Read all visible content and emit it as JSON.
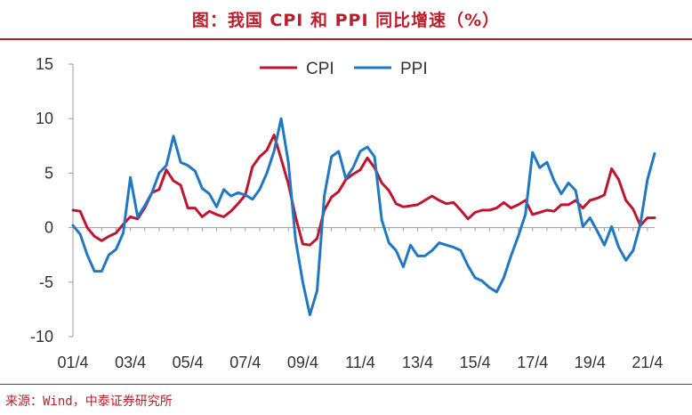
{
  "title": "图：我国 CPI 和 PPI 同比增速（%）",
  "source": "来源：Wind，中泰证券研究所",
  "colors": {
    "cpi": "#c0152f",
    "ppi": "#1f78c1",
    "accent": "#b8202b"
  },
  "chart_data": {
    "type": "line",
    "title": "我国 CPI 和 PPI 同比增速（%）",
    "xlabel": "",
    "ylabel": "",
    "ylim": [
      -10,
      15
    ],
    "yticks": [
      -10,
      -5,
      0,
      5,
      10,
      15
    ],
    "ytick_labels": [
      "-10",
      "-5",
      "0",
      "5",
      "10",
      "15"
    ],
    "x_start": 2001.25,
    "x_end": 2021.5,
    "xtick_labels": [
      "01/4",
      "03/4",
      "05/4",
      "07/4",
      "09/4",
      "11/4",
      "13/4",
      "15/4",
      "17/4",
      "19/4",
      "21/4"
    ],
    "xtick_positions": [
      2001.25,
      2003.25,
      2005.25,
      2007.25,
      2009.25,
      2011.25,
      2013.25,
      2015.25,
      2017.25,
      2019.25,
      2021.25
    ],
    "legend_position": "top",
    "series": [
      {
        "name": "CPI",
        "color": "#c0152f",
        "x": [
          2001.25,
          2001.5,
          2001.75,
          2002.0,
          2002.25,
          2002.5,
          2002.75,
          2003.0,
          2003.25,
          2003.5,
          2003.75,
          2004.0,
          2004.25,
          2004.5,
          2004.75,
          2005.0,
          2005.25,
          2005.5,
          2005.75,
          2006.0,
          2006.25,
          2006.5,
          2006.75,
          2007.0,
          2007.25,
          2007.5,
          2007.75,
          2008.0,
          2008.25,
          2008.5,
          2008.75,
          2009.0,
          2009.25,
          2009.5,
          2009.75,
          2010.0,
          2010.25,
          2010.5,
          2010.75,
          2011.0,
          2011.25,
          2011.5,
          2011.75,
          2012.0,
          2012.25,
          2012.5,
          2012.75,
          2013.0,
          2013.25,
          2013.5,
          2013.75,
          2014.0,
          2014.25,
          2014.5,
          2014.75,
          2015.0,
          2015.25,
          2015.5,
          2015.75,
          2016.0,
          2016.25,
          2016.5,
          2016.75,
          2017.0,
          2017.25,
          2017.5,
          2017.75,
          2018.0,
          2018.25,
          2018.5,
          2018.75,
          2019.0,
          2019.25,
          2019.5,
          2019.75,
          2020.0,
          2020.25,
          2020.5,
          2020.75,
          2021.0,
          2021.25,
          2021.5
        ],
        "values": [
          1.6,
          1.5,
          0.0,
          -0.8,
          -1.2,
          -0.8,
          -0.5,
          0.3,
          1.0,
          0.8,
          1.8,
          3.2,
          3.5,
          5.3,
          4.3,
          3.9,
          1.8,
          1.8,
          1.0,
          1.5,
          1.2,
          1.0,
          1.5,
          2.2,
          3.0,
          5.6,
          6.5,
          7.1,
          8.5,
          6.3,
          4.0,
          1.0,
          -1.5,
          -1.6,
          -1.0,
          1.6,
          2.8,
          3.3,
          4.4,
          4.9,
          5.3,
          6.4,
          5.5,
          4.1,
          3.4,
          2.2,
          1.9,
          2.0,
          2.1,
          2.5,
          2.9,
          2.5,
          2.2,
          2.3,
          1.6,
          0.8,
          1.4,
          1.6,
          1.6,
          1.8,
          2.3,
          1.8,
          2.1,
          2.5,
          1.2,
          1.4,
          1.6,
          1.5,
          2.1,
          2.1,
          2.5,
          1.8,
          2.5,
          2.7,
          3.0,
          5.4,
          4.4,
          2.5,
          1.7,
          0.2,
          0.9,
          0.9
        ]
      },
      {
        "name": "PPI",
        "color": "#1f78c1",
        "x": [
          2001.25,
          2001.5,
          2001.75,
          2002.0,
          2002.25,
          2002.5,
          2002.75,
          2003.0,
          2003.25,
          2003.5,
          2003.75,
          2004.0,
          2004.25,
          2004.5,
          2004.75,
          2005.0,
          2005.25,
          2005.5,
          2005.75,
          2006.0,
          2006.25,
          2006.5,
          2006.75,
          2007.0,
          2007.25,
          2007.5,
          2007.75,
          2008.0,
          2008.25,
          2008.5,
          2008.75,
          2009.0,
          2009.25,
          2009.5,
          2009.75,
          2010.0,
          2010.25,
          2010.5,
          2010.75,
          2011.0,
          2011.25,
          2011.5,
          2011.75,
          2012.0,
          2012.25,
          2012.5,
          2012.75,
          2013.0,
          2013.25,
          2013.5,
          2013.75,
          2014.0,
          2014.25,
          2014.5,
          2014.75,
          2015.0,
          2015.25,
          2015.5,
          2015.75,
          2016.0,
          2016.25,
          2016.5,
          2016.75,
          2017.0,
          2017.25,
          2017.5,
          2017.75,
          2018.0,
          2018.25,
          2018.5,
          2018.75,
          2019.0,
          2019.25,
          2019.5,
          2019.75,
          2020.0,
          2020.25,
          2020.5,
          2020.75,
          2021.0,
          2021.25,
          2021.5
        ],
        "values": [
          0.2,
          -0.6,
          -2.5,
          -4.0,
          -4.0,
          -2.5,
          -2.0,
          -0.5,
          4.6,
          1.0,
          2.0,
          3.2,
          5.0,
          5.7,
          8.4,
          6.0,
          5.7,
          5.2,
          3.6,
          3.1,
          1.9,
          3.5,
          2.9,
          3.2,
          3.0,
          2.6,
          3.5,
          5.0,
          7.0,
          10.0,
          6.0,
          -1.1,
          -5.0,
          -8.0,
          -5.8,
          2.9,
          6.5,
          7.0,
          4.5,
          5.5,
          7.0,
          7.4,
          6.5,
          0.7,
          -1.4,
          -2.1,
          -3.6,
          -1.6,
          -2.6,
          -2.6,
          -2.1,
          -1.4,
          -1.6,
          -1.8,
          -2.1,
          -3.5,
          -4.6,
          -4.9,
          -5.5,
          -5.9,
          -4.6,
          -2.6,
          -0.8,
          1.2,
          6.9,
          5.5,
          6.0,
          4.3,
          3.1,
          4.1,
          3.4,
          0.1,
          0.9,
          -0.3,
          -1.6,
          0.1,
          -1.8,
          -3.0,
          -2.1,
          0.3,
          4.4,
          6.8
        ]
      }
    ]
  }
}
